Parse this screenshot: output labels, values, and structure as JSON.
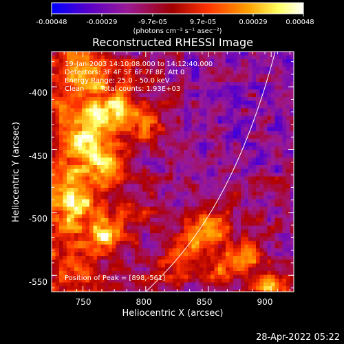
{
  "chart_data": {
    "type": "heatmap",
    "title": "Reconstructed RHESSI Image",
    "xlabel": "Heliocentric X (arcsec)",
    "ylabel": "Heliocentric Y (arcsec)",
    "xlim": [
      725,
      918
    ],
    "ylim": [
      -563,
      -372
    ],
    "xticks": [
      750,
      800,
      850,
      900
    ],
    "yticks": [
      -400,
      -450,
      -500,
      -550
    ],
    "colorbar": {
      "ticks": [
        "-0.00048",
        "-0.00029",
        "-9.7e-05",
        "9.7e-05",
        "0.00029",
        "0.00048"
      ],
      "unit_label": "(photons cm⁻² s⁻¹ asec⁻²)",
      "range": [
        -0.00048,
        0.00048
      ],
      "colors": [
        "#0000ff",
        "#5a00c8",
        "#9a1a96",
        "#b00000",
        "#ff3300",
        "#ffa000",
        "#ffff60",
        "#ffffff"
      ]
    },
    "annotations": {
      "time": "19-Jan-2003 14:10:08.000 to 14:12:40.000",
      "detectors": "Detectors: 3F 4F 5F 6F 7F 8F, Att 0",
      "energy": "Energy Range: 25.0 - 50.0 keV",
      "method": "Clean",
      "counts": "Total counts: 1.93E+03",
      "peak": "Position of Peak = [898,-561]"
    },
    "limb": "solar limb arc",
    "bright_regions": [
      {
        "x": 755,
        "y": -425,
        "level": "high"
      },
      {
        "x": 775,
        "y": -445,
        "level": "high"
      },
      {
        "x": 765,
        "y": -520,
        "level": "peak"
      },
      {
        "x": 850,
        "y": -515,
        "level": "high"
      },
      {
        "x": 835,
        "y": -535,
        "level": "high"
      },
      {
        "x": 900,
        "y": -561,
        "level": "peak"
      }
    ]
  },
  "footer": {
    "timestamp": "28-Apr-2022 05:22"
  }
}
